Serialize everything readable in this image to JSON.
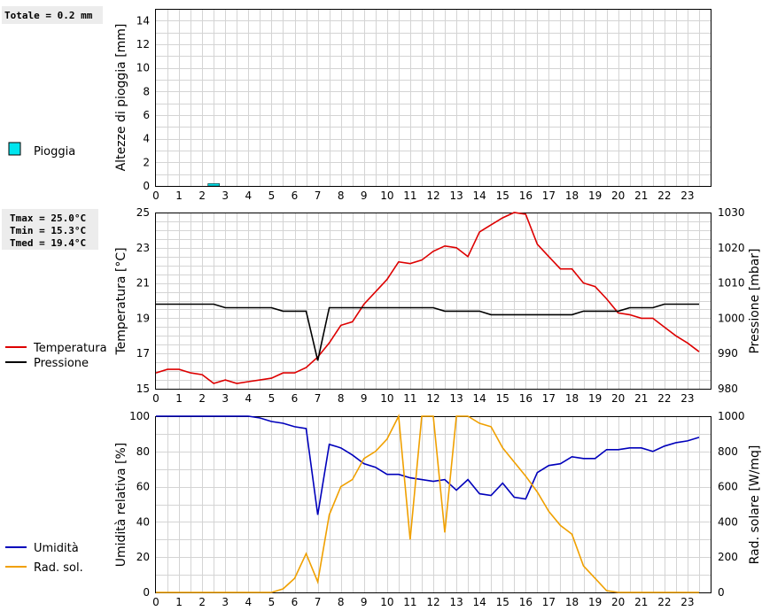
{
  "chart_data": [
    {
      "type": "bar",
      "ylabel": "Altezze di pioggia [mm]",
      "xlim": [
        0,
        24
      ],
      "ylim": [
        0,
        15
      ],
      "y_ticks": [
        0,
        2,
        4,
        6,
        8,
        10,
        12,
        14
      ],
      "x_ticks": [
        0,
        1,
        2,
        3,
        4,
        5,
        6,
        7,
        8,
        9,
        10,
        11,
        12,
        13,
        14,
        15,
        16,
        17,
        18,
        19,
        20,
        21,
        22,
        23
      ],
      "grid": true,
      "summary": "Totale = 0.2 mm",
      "series": [
        {
          "name": "Pioggia",
          "color": "#00e5ee",
          "bar_width_hours": 0.5,
          "x": [
            2
          ],
          "values": [
            0.2
          ]
        }
      ]
    },
    {
      "type": "line",
      "ylabel": "Temperatura [°C]",
      "y2label": "Pressione [mbar]",
      "xlim": [
        0,
        24
      ],
      "ylim": [
        15,
        25
      ],
      "y2lim": [
        980,
        1030
      ],
      "y_ticks": [
        15,
        17,
        19,
        21,
        23,
        25
      ],
      "y2_ticks": [
        980,
        990,
        1000,
        1010,
        1020,
        1030
      ],
      "x_ticks": [
        0,
        1,
        2,
        3,
        4,
        5,
        6,
        7,
        8,
        9,
        10,
        11,
        12,
        13,
        14,
        15,
        16,
        17,
        18,
        19,
        20,
        21,
        22,
        23
      ],
      "grid": true,
      "stats": [
        "Tmax = 25.0°C",
        "Tmin = 15.3°C",
        "Tmed = 19.4°C"
      ],
      "series": [
        {
          "name": "Temperatura",
          "color": "#dd0000",
          "axis": "left",
          "x": [
            0,
            0.5,
            1,
            1.5,
            2,
            2.5,
            3,
            3.5,
            4,
            4.5,
            5,
            5.5,
            6,
            6.5,
            7,
            7.5,
            8,
            8.5,
            9,
            9.5,
            10,
            10.5,
            11,
            11.5,
            12,
            12.5,
            13,
            13.5,
            14,
            14.5,
            15,
            15.5,
            16,
            16.5,
            17,
            17.5,
            18,
            18.5,
            19,
            19.5,
            20,
            20.5,
            21,
            21.5,
            22,
            22.5,
            23,
            23.5
          ],
          "values": [
            15.9,
            16.1,
            16.1,
            15.9,
            15.8,
            15.3,
            15.5,
            15.3,
            15.4,
            15.5,
            15.6,
            15.9,
            15.9,
            16.2,
            16.8,
            17.6,
            18.6,
            18.8,
            19.8,
            20.5,
            21.2,
            22.2,
            22.1,
            22.3,
            22.8,
            23.1,
            23.0,
            22.5,
            23.9,
            24.3,
            24.7,
            25.0,
            24.9,
            23.2,
            22.5,
            21.8,
            21.8,
            21.0,
            20.8,
            20.1,
            19.3,
            19.2,
            19.0,
            19.0,
            18.5,
            18.0,
            17.6,
            17.1
          ]
        },
        {
          "name": "Pressione",
          "color": "#000000",
          "axis": "right",
          "x": [
            0,
            0.5,
            1,
            1.5,
            2,
            2.5,
            3,
            3.5,
            4,
            4.5,
            5,
            5.5,
            6,
            6.5,
            7,
            7.5,
            8,
            8.5,
            9,
            9.5,
            10,
            10.5,
            11,
            11.5,
            12,
            12.5,
            13,
            13.5,
            14,
            14.5,
            15,
            15.5,
            16,
            16.5,
            17,
            17.5,
            18,
            18.5,
            19,
            19.5,
            20,
            20.5,
            21,
            21.5,
            22,
            22.5,
            23,
            23.5
          ],
          "values": [
            1004,
            1004,
            1004,
            1004,
            1004,
            1004,
            1003,
            1003,
            1003,
            1003,
            1003,
            1002,
            1002,
            1002,
            988,
            1003,
            1003,
            1003,
            1003,
            1003,
            1003,
            1003,
            1003,
            1003,
            1003,
            1002,
            1002,
            1002,
            1002,
            1001,
            1001,
            1001,
            1001,
            1001,
            1001,
            1001,
            1001,
            1002,
            1002,
            1002,
            1002,
            1003,
            1003,
            1003,
            1004,
            1004,
            1004,
            1004
          ]
        }
      ]
    },
    {
      "type": "line",
      "ylabel": "Umidità relativa [%]",
      "y2label": "Rad. solare [W/mq]",
      "xlim": [
        0,
        24
      ],
      "ylim": [
        0,
        100
      ],
      "y2lim": [
        0,
        1000
      ],
      "y_ticks": [
        0,
        20,
        40,
        60,
        80,
        100
      ],
      "y2_ticks": [
        0,
        200,
        400,
        600,
        800,
        1000
      ],
      "x_ticks": [
        0,
        1,
        2,
        3,
        4,
        5,
        6,
        7,
        8,
        9,
        10,
        11,
        12,
        13,
        14,
        15,
        16,
        17,
        18,
        19,
        20,
        21,
        22,
        23
      ],
      "grid": true,
      "series": [
        {
          "name": "Umidità",
          "color": "#0000bb",
          "axis": "left",
          "x": [
            0,
            0.5,
            1,
            1.5,
            2,
            2.5,
            3,
            3.5,
            4,
            4.5,
            5,
            5.5,
            6,
            6.5,
            7,
            7.5,
            8,
            8.5,
            9,
            9.5,
            10,
            10.5,
            11,
            11.5,
            12,
            12.5,
            13,
            13.5,
            14,
            14.5,
            15,
            15.5,
            16,
            16.5,
            17,
            17.5,
            18,
            18.5,
            19,
            19.5,
            20,
            20.5,
            21,
            21.5,
            22,
            22.5,
            23,
            23.5
          ],
          "values": [
            100,
            100,
            100,
            100,
            100,
            100,
            100,
            100,
            100,
            99,
            97,
            96,
            94,
            93,
            44,
            84,
            82,
            78,
            73,
            71,
            67,
            67,
            65,
            64,
            63,
            64,
            58,
            64,
            56,
            55,
            62,
            54,
            53,
            68,
            72,
            73,
            77,
            76,
            76,
            81,
            81,
            82,
            82,
            80,
            83,
            85,
            86,
            88
          ]
        },
        {
          "name": "Rad. sol.",
          "color": "#f0a000",
          "axis": "right",
          "x": [
            0,
            0.5,
            1,
            1.5,
            2,
            2.5,
            3,
            3.5,
            4,
            4.5,
            5,
            5.5,
            6,
            6.5,
            7,
            7.5,
            8,
            8.5,
            9,
            9.5,
            10,
            10.5,
            11,
            11.5,
            12,
            12.5,
            13,
            13.5,
            14,
            14.5,
            15,
            15.5,
            16,
            16.5,
            17,
            17.5,
            18,
            18.5,
            19,
            19.5,
            20,
            20.5,
            21,
            21.5,
            22,
            22.5,
            23,
            23.5
          ],
          "values": [
            0,
            0,
            0,
            0,
            0,
            0,
            0,
            0,
            0,
            0,
            0,
            20,
            80,
            220,
            60,
            440,
            600,
            640,
            760,
            800,
            870,
            1000,
            300,
            1000,
            1000,
            340,
            1000,
            1000,
            960,
            940,
            820,
            740,
            660,
            570,
            460,
            380,
            330,
            150,
            80,
            10,
            0,
            0,
            0,
            0,
            0,
            0,
            0,
            0
          ]
        }
      ]
    }
  ]
}
